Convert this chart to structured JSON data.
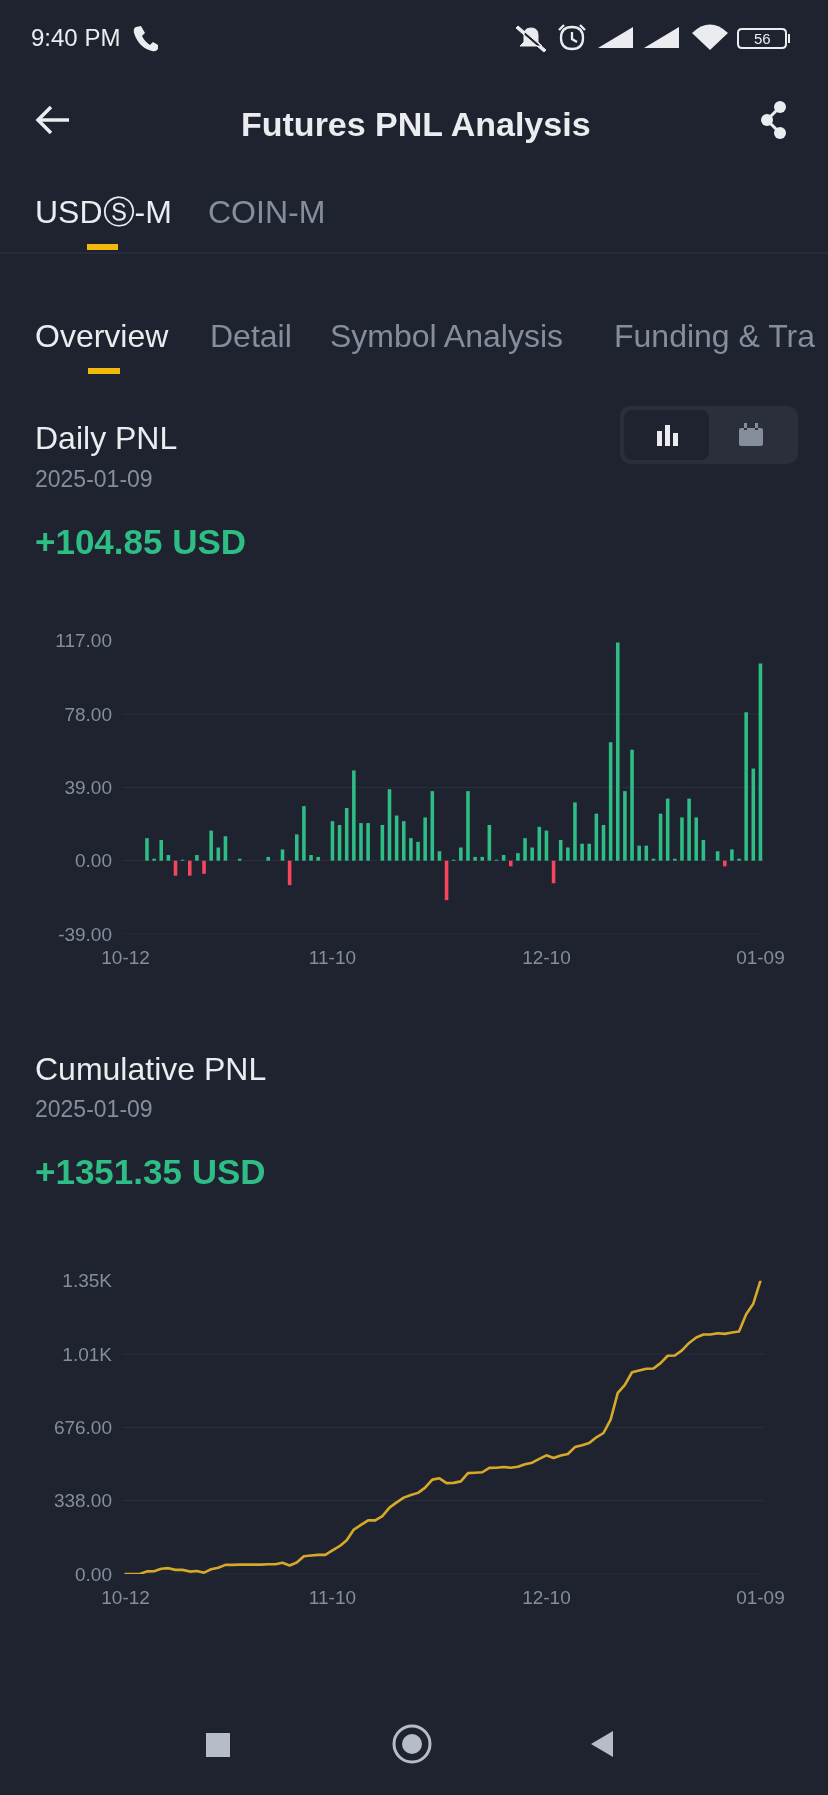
{
  "chart_data": [
    {
      "type": "other",
      "title": "Futures PNL Analysis",
      "annotations": [
        "9:40 PM",
        "56",
        "USDⓈ-M",
        "COIN-M",
        "Overview",
        "Detail",
        "Symbol Analysis",
        "Funding & Tra"
      ]
    },
    {
      "type": "bar",
      "title": "Daily PNL",
      "subtitle": "2025-01-09",
      "annotations": [
        "+104.85 USD"
      ],
      "categories": [
        "10-12",
        null,
        null,
        null,
        null,
        null,
        null,
        null,
        null,
        null,
        null,
        null,
        null,
        null,
        null,
        null,
        null,
        null,
        null,
        null,
        null,
        null,
        null,
        null,
        null,
        null,
        null,
        null,
        null,
        "11-10",
        null,
        null,
        null,
        null,
        null,
        null,
        null,
        null,
        null,
        null,
        null,
        null,
        null,
        null,
        null,
        null,
        null,
        null,
        null,
        null,
        null,
        null,
        null,
        null,
        null,
        null,
        null,
        null,
        null,
        "12-10",
        null,
        null,
        null,
        null,
        null,
        null,
        null,
        null,
        null,
        null,
        null,
        null,
        null,
        null,
        null,
        null,
        null,
        null,
        null,
        null,
        null,
        null,
        null,
        null,
        null,
        null,
        null,
        null,
        null,
        "01-09"
      ],
      "values": [
        null,
        null,
        null,
        12,
        1,
        11,
        3,
        -8,
        0.5,
        -8,
        3,
        -7,
        16,
        7,
        13,
        null,
        1,
        null,
        null,
        null,
        2,
        null,
        6,
        -13,
        14,
        29,
        3,
        2,
        null,
        21,
        19,
        28,
        48,
        20,
        20,
        null,
        19,
        38,
        24,
        21,
        12,
        10,
        23,
        37,
        5,
        -21,
        0.5,
        7,
        37,
        2,
        2,
        19,
        0.5,
        3,
        -3,
        4,
        12,
        7,
        18,
        16,
        -12,
        11,
        7,
        31,
        9,
        9,
        25,
        19,
        63,
        116,
        37,
        59,
        8,
        8,
        1,
        25,
        33,
        1,
        23,
        33,
        23,
        11,
        null,
        5,
        -3,
        6,
        1,
        79,
        49,
        104.85
      ],
      "colors": [
        null,
        null,
        null,
        "#2ebd85",
        "#2ebd85",
        "#2ebd85",
        "#2ebd85",
        "#f6465d",
        "#2ebd85",
        "#f6465d",
        "#2ebd85",
        "#f6465d",
        "#2ebd85",
        "#2ebd85",
        "#2ebd85",
        null,
        "#2ebd85",
        null,
        null,
        null,
        "#2ebd85",
        null,
        "#2ebd85",
        "#f6465d",
        "#2ebd85",
        "#2ebd85",
        "#2ebd85",
        "#2ebd85",
        null,
        "#2ebd85",
        "#2ebd85",
        "#2ebd85",
        "#2ebd85",
        "#2ebd85",
        "#2ebd85",
        null,
        "#2ebd85",
        "#2ebd85",
        "#2ebd85",
        "#2ebd85",
        "#2ebd85",
        "#2ebd85",
        "#2ebd85",
        "#2ebd85",
        "#2ebd85",
        "#f6465d",
        "#2ebd85",
        "#2ebd85",
        "#2ebd85",
        "#2ebd85",
        "#2ebd85",
        "#2ebd85",
        "#2ebd85",
        "#2ebd85",
        "#f6465d",
        "#2ebd85",
        "#2ebd85",
        "#2ebd85",
        "#2ebd85",
        "#2ebd85",
        "#f6465d",
        "#2ebd85",
        "#2ebd85",
        "#2ebd85",
        "#2ebd85",
        "#2ebd85",
        "#2ebd85",
        "#2ebd85",
        "#2ebd85",
        "#2ebd85",
        "#2ebd85",
        "#2ebd85",
        "#2ebd85",
        "#2ebd85",
        "#2ebd85",
        "#2ebd85",
        "#2ebd85",
        "#2ebd85",
        "#2ebd85",
        "#2ebd85",
        "#2ebd85",
        "#2ebd85",
        null,
        "#2ebd85",
        "#f6465d",
        "#2ebd85",
        "#2ebd85",
        "#2ebd85",
        "#2ebd85",
        "#2ebd85"
      ],
      "ylim": [
        -39,
        117
      ],
      "yticks": [
        {
          "value": -39,
          "label": "-39.00"
        },
        {
          "value": 0,
          "label": "0.00"
        },
        {
          "value": 39,
          "label": "39.00"
        },
        {
          "value": 78,
          "label": "78.00"
        },
        {
          "value": 117,
          "label": "117.00"
        }
      ],
      "grid": "y"
    },
    {
      "type": "line",
      "title": "Cumulative PNL",
      "subtitle": "2025-01-09",
      "annotations": [
        "+1351.35 USD"
      ],
      "categories": [
        "10-12",
        null,
        null,
        null,
        null,
        null,
        null,
        null,
        null,
        null,
        null,
        null,
        null,
        null,
        null,
        null,
        null,
        null,
        null,
        null,
        null,
        null,
        null,
        null,
        null,
        null,
        null,
        null,
        null,
        "11-10",
        null,
        null,
        null,
        null,
        null,
        null,
        null,
        null,
        null,
        null,
        null,
        null,
        null,
        null,
        null,
        null,
        null,
        null,
        null,
        null,
        null,
        null,
        null,
        null,
        null,
        null,
        null,
        null,
        null,
        "12-10",
        null,
        null,
        null,
        null,
        null,
        null,
        null,
        null,
        null,
        null,
        null,
        null,
        null,
        null,
        null,
        null,
        null,
        null,
        null,
        null,
        null,
        null,
        null,
        null,
        null,
        null,
        null,
        null,
        null,
        "01-09"
      ],
      "values": [
        0,
        0,
        0,
        12,
        13,
        24,
        27,
        19,
        19,
        11,
        14,
        6,
        22,
        29,
        42,
        42,
        43,
        43,
        43,
        43,
        45,
        45,
        52,
        39,
        53,
        82,
        85,
        88,
        88,
        109,
        128,
        156,
        205,
        226,
        247,
        247,
        267,
        306,
        330,
        352,
        364,
        374,
        398,
        435,
        441,
        419,
        420,
        427,
        465,
        467,
        469,
        489,
        490,
        493,
        490,
        494,
        506,
        513,
        531,
        547,
        535,
        546,
        553,
        585,
        594,
        604,
        630,
        650,
        712,
        835,
        872,
        930,
        938,
        946,
        947,
        972,
        1006,
        1007,
        1031,
        1065,
        1090,
        1104,
        1104,
        1110,
        1107,
        1113,
        1118,
        1197,
        1246,
        1351.35
      ],
      "color": "#d6aa28",
      "line_style": "solid",
      "ylim": [
        0,
        1352
      ],
      "yticks": [
        {
          "value": 0,
          "label": "0.00"
        },
        {
          "value": 338,
          "label": "338.00"
        },
        {
          "value": 676,
          "label": "676.00"
        },
        {
          "value": 1014,
          "label": "1.01K"
        },
        {
          "value": 1352,
          "label": "1.35K"
        }
      ],
      "grid": "y"
    }
  ]
}
